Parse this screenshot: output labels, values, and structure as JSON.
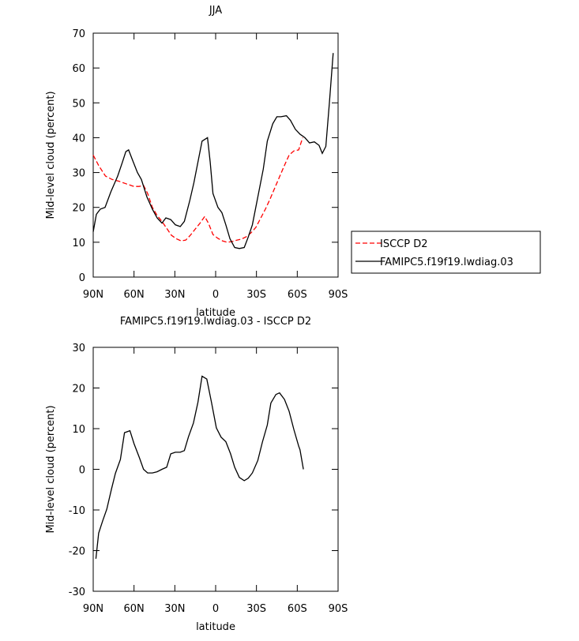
{
  "chart_data": [
    {
      "type": "line",
      "title": "JJA",
      "xlabel": "latitude",
      "ylabel": "Mid-level cloud (percent)",
      "xlim": [
        90,
        -90
      ],
      "ylim": [
        0,
        70
      ],
      "xticks": [
        {
          "value": 90,
          "label": "90N"
        },
        {
          "value": 60,
          "label": "60N"
        },
        {
          "value": 30,
          "label": "30N"
        },
        0,
        {
          "value": -30,
          "label": "30S"
        },
        {
          "value": -60,
          "label": "60S"
        },
        {
          "value": -90,
          "label": "90S"
        }
      ],
      "yticks": [
        0,
        10,
        20,
        30,
        40,
        50,
        60,
        70
      ],
      "legend": "right",
      "series": [
        {
          "name": "ISCCP D2",
          "color": "#ff0000",
          "dashed": true,
          "x": [
            90,
            86,
            81,
            76,
            71,
            66,
            60,
            56.3,
            53,
            50,
            46.5,
            43,
            39.5,
            36,
            32.5,
            29,
            25.5,
            22,
            18.6,
            15,
            11.6,
            8,
            5.2,
            2,
            -1.7,
            -5,
            -8.6,
            -12,
            -15.5,
            -19,
            -22.6,
            -26,
            -29.6,
            -33,
            -36.6,
            -40,
            -43.5,
            -47,
            -50.5,
            -54,
            -57.5,
            -61,
            -64
          ],
          "values": [
            35,
            32,
            29,
            28,
            27.5,
            26.8,
            26,
            26,
            26.3,
            24,
            20,
            17.7,
            16,
            14,
            12,
            11,
            10.4,
            10.6,
            12,
            13.8,
            15.4,
            17.4,
            15.4,
            12.2,
            11.1,
            10.4,
            10,
            10.2,
            10.6,
            10.9,
            11.6,
            12.7,
            14.3,
            16.8,
            19.5,
            22.4,
            25.6,
            28.8,
            32,
            35,
            36.2,
            36.5,
            40
          ]
        },
        {
          "name": "FAMIPC5.f19f19.lwdiag.03",
          "color": "#000000",
          "dashed": false,
          "x": [
            90,
            87.7,
            84.8,
            81.3,
            77,
            72,
            68.5,
            66,
            64,
            61,
            57.5,
            54.6,
            50.5,
            46.5,
            43,
            39.5,
            36.6,
            33,
            29.6,
            26,
            23,
            19,
            16,
            13,
            10,
            6,
            4,
            2,
            -1.7,
            -4.6,
            -7.5,
            -10.5,
            -14,
            -17.4,
            -21,
            -24,
            -27,
            -31,
            -35,
            -38,
            -42,
            -45,
            -48,
            -52,
            -55,
            -58.6,
            -62,
            -65.6,
            -69,
            -72.6,
            -76,
            -78.4,
            -81,
            -83.6,
            -86.4
          ],
          "values": [
            13,
            18,
            19.5,
            20,
            24.5,
            29,
            33,
            36,
            36.5,
            33.5,
            30,
            28,
            23,
            19.5,
            17,
            15.5,
            17,
            16.5,
            15,
            14.5,
            16,
            22,
            27,
            33,
            39,
            40,
            33,
            24,
            20,
            18.5,
            15,
            11,
            8.5,
            8.2,
            8.5,
            11.5,
            15,
            23,
            31,
            39,
            44,
            46,
            46,
            46.3,
            45,
            42.4,
            41,
            40,
            38.5,
            38.8,
            37.8,
            35.5,
            37.5,
            50,
            64.3
          ]
        }
      ]
    },
    {
      "type": "line",
      "title": "FAMIPC5.f19f19.lwdiag.03 - ISCCP D2",
      "xlabel": "latitude",
      "ylabel": "Mid-level cloud (percent)",
      "xlim": [
        90,
        -90
      ],
      "ylim": [
        -30,
        30
      ],
      "xticks": [
        {
          "value": 90,
          "label": "90N"
        },
        {
          "value": 60,
          "label": "60N"
        },
        {
          "value": 30,
          "label": "30N"
        },
        0,
        {
          "value": -30,
          "label": "30S"
        },
        {
          "value": -60,
          "label": "60S"
        },
        {
          "value": -90,
          "label": "90S"
        }
      ],
      "yticks": [
        -30,
        -20,
        -10,
        0,
        10,
        20,
        30
      ],
      "series": [
        {
          "color": "#000000",
          "dashed": false,
          "x": [
            88,
            86,
            83,
            80,
            76.6,
            73.7,
            70,
            67,
            63,
            60,
            56,
            53,
            50,
            46.5,
            43,
            39.5,
            36,
            33,
            29.6,
            26,
            23,
            20,
            16.3,
            13,
            10,
            6.5,
            3,
            -0.5,
            -4,
            -7.5,
            -11,
            -14,
            -17.4,
            -21,
            -24,
            -27,
            -31,
            -34.4,
            -38,
            -40.6,
            -44.3,
            -47,
            -50.6,
            -54,
            -57.5,
            -61,
            -62,
            -64.5
          ],
          "values": [
            -22,
            -15.7,
            -12.6,
            -9.8,
            -4.9,
            -1,
            2.4,
            9,
            9.5,
            6.3,
            2.8,
            0,
            -0.9,
            -0.9,
            -0.6,
            0,
            0.5,
            3.8,
            4.2,
            4.2,
            4.6,
            8,
            11.4,
            16.5,
            22.9,
            22.2,
            16.4,
            10.2,
            7.9,
            6.8,
            3.8,
            0.5,
            -2,
            -2.8,
            -2.2,
            -0.9,
            2.2,
            6.7,
            10.9,
            16.3,
            18.4,
            18.8,
            17.2,
            14.3,
            9.8,
            5.7,
            4.8,
            0
          ]
        }
      ]
    }
  ]
}
